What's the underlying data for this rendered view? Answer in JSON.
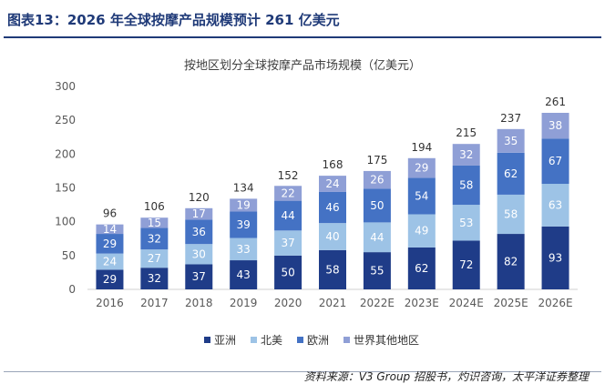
{
  "figure": {
    "title": "图表13：2026 年全球按摩产品规模预计 261 亿美元",
    "source": "资料来源：V3 Group 招股书，灼识咨询，太平洋证券整理"
  },
  "chart_data": {
    "type": "bar",
    "stacked": true,
    "title": "按地区划分全球按摩产品市场规模（亿美元）",
    "categories": [
      "2016",
      "2017",
      "2018",
      "2019",
      "2020",
      "2021",
      "2022E",
      "2023E",
      "2024E",
      "2025E",
      "2026E"
    ],
    "series": [
      {
        "name": "亚洲",
        "color": "#1f3c88",
        "values": [
          29,
          32,
          37,
          43,
          50,
          58,
          55,
          62,
          72,
          82,
          93
        ]
      },
      {
        "name": "北美",
        "color": "#9dc3e6",
        "values": [
          24,
          27,
          30,
          33,
          37,
          40,
          44,
          49,
          53,
          58,
          63
        ]
      },
      {
        "name": "欧洲",
        "color": "#4472c4",
        "values": [
          29,
          32,
          36,
          39,
          44,
          46,
          50,
          54,
          58,
          62,
          67
        ]
      },
      {
        "name": "世界其他地区",
        "color": "#8f9fd6",
        "values": [
          14,
          15,
          17,
          19,
          22,
          24,
          26,
          29,
          32,
          35,
          38
        ]
      }
    ],
    "totals": [
      96,
      106,
      120,
      134,
      152,
      168,
      175,
      194,
      215,
      237,
      261
    ],
    "ylim": [
      0,
      300
    ],
    "yticks": [
      0,
      50,
      100,
      150,
      200,
      250,
      300
    ],
    "grid": false,
    "legend": "bottom"
  }
}
